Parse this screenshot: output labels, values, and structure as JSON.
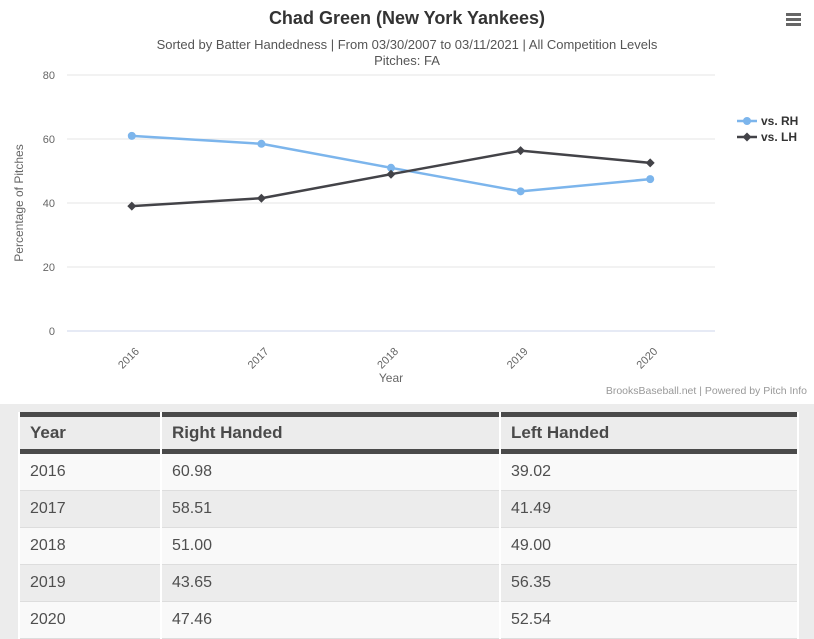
{
  "header": {
    "title": "Chad Green (New York Yankees)",
    "subtitle": "Sorted by Batter Handedness | From 03/30/2007 to 03/11/2021 | All Competition Levels",
    "pitches_line": "Pitches: FA"
  },
  "chart_data": {
    "type": "line",
    "categories": [
      "2016",
      "2017",
      "2018",
      "2019",
      "2020"
    ],
    "series": [
      {
        "name": "vs. RH",
        "color": "#7cb5ec",
        "marker": "circle",
        "values": [
          60.98,
          58.51,
          51.0,
          43.65,
          47.46
        ]
      },
      {
        "name": "vs. LH",
        "color": "#434348",
        "marker": "diamond",
        "values": [
          39.02,
          41.49,
          49.0,
          56.35,
          52.54
        ]
      }
    ],
    "xlabel": "Year",
    "ylabel": "Percentage of Pitches",
    "ylim": [
      0,
      80
    ],
    "yticks": [
      0,
      20,
      40,
      60,
      80
    ],
    "grid": true,
    "legend_position": "right",
    "credits": "BrooksBaseball.net | Powered by Pitch Info"
  },
  "table": {
    "headers": [
      "Year",
      "Right Handed",
      "Left Handed"
    ],
    "rows": [
      [
        "2016",
        "60.98",
        "39.02"
      ],
      [
        "2017",
        "58.51",
        "41.49"
      ],
      [
        "2018",
        "51.00",
        "49.00"
      ],
      [
        "2019",
        "43.65",
        "56.35"
      ],
      [
        "2020",
        "47.46",
        "52.54"
      ]
    ]
  },
  "colors": {
    "rh_series": "#7cb5ec",
    "lh_series": "#434348",
    "grid_line": "#e6e6e6",
    "axis_line": "#ccd6eb",
    "tick_label": "#666666",
    "legend_text": "#333333",
    "credits_text": "#999999",
    "table_border_dark": "#4a4a4a",
    "row_bg": "#f9f9f9",
    "row_alt_bg": "#ececec"
  }
}
